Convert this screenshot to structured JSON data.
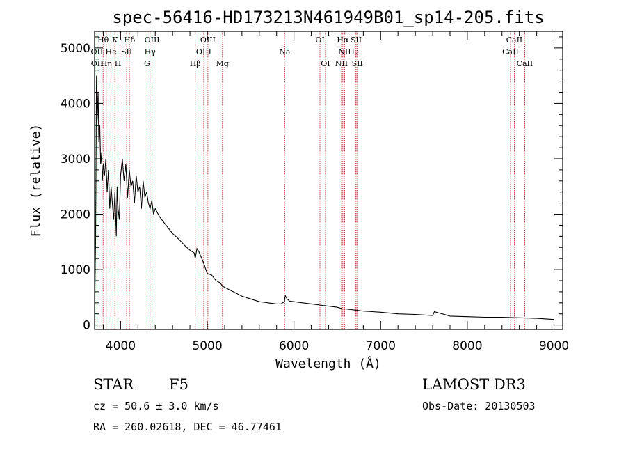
{
  "chart_data": {
    "type": "line",
    "title": "spec-56416-HD173213N461949B01_sp14-205.fits",
    "xlabel": "Wavelength (Å)",
    "ylabel": "Flux (relative)",
    "xlim": [
      3700,
      9100
    ],
    "ylim": [
      -80,
      5300
    ],
    "xticks": [
      4000,
      5000,
      6000,
      7000,
      8000,
      9000
    ],
    "yticks": [
      0,
      1000,
      2000,
      3000,
      4000,
      5000
    ],
    "series": [
      {
        "name": "spectrum",
        "x": [
          3700,
          3712,
          3722,
          3730,
          3740,
          3750,
          3760,
          3770,
          3780,
          3790,
          3800,
          3815,
          3830,
          3845,
          3860,
          3875,
          3890,
          3905,
          3920,
          3935,
          3950,
          3960,
          3970,
          3985,
          4000,
          4020,
          4040,
          4060,
          4080,
          4100,
          4120,
          4140,
          4160,
          4180,
          4200,
          4220,
          4240,
          4260,
          4280,
          4300,
          4320,
          4340,
          4360,
          4380,
          4400,
          4450,
          4500,
          4550,
          4600,
          4650,
          4700,
          4750,
          4800,
          4850,
          4861,
          4880,
          4900,
          4950,
          5000,
          5050,
          5100,
          5150,
          5175,
          5200,
          5300,
          5400,
          5500,
          5600,
          5700,
          5800,
          5850,
          5890,
          5900,
          5920,
          5950,
          6000,
          6100,
          6200,
          6300,
          6400,
          6500,
          6563,
          6600,
          6700,
          6800,
          6900,
          7000,
          7200,
          7400,
          7600,
          7620,
          7800,
          8000,
          8200,
          8400,
          8600,
          8800,
          9000
        ],
        "y": [
          0,
          1600,
          4500,
          3700,
          4200,
          3300,
          3600,
          2900,
          3100,
          2600,
          2900,
          2700,
          3000,
          2400,
          2800,
          2100,
          2500,
          2200,
          1900,
          2400,
          1600,
          2500,
          2100,
          1900,
          2700,
          3000,
          2600,
          2900,
          2300,
          2800,
          2500,
          2600,
          2200,
          2700,
          2400,
          2500,
          2100,
          2600,
          2300,
          2400,
          2200,
          2100,
          2250,
          2000,
          2100,
          1950,
          1850,
          1750,
          1650,
          1580,
          1500,
          1420,
          1350,
          1300,
          1200,
          1380,
          1330,
          1150,
          930,
          900,
          800,
          760,
          700,
          680,
          600,
          520,
          470,
          420,
          400,
          380,
          380,
          420,
          530,
          470,
          430,
          420,
          400,
          380,
          360,
          340,
          320,
          290,
          290,
          270,
          250,
          240,
          230,
          200,
          190,
          170,
          240,
          160,
          150,
          140,
          140,
          130,
          120,
          100
        ]
      }
    ],
    "line_labels": [
      {
        "label": "Hθ",
        "x": 3798,
        "row": 0
      },
      {
        "label": "K",
        "x": 3934,
        "row": 0
      },
      {
        "label": "Hδ",
        "x": 4102,
        "row": 0
      },
      {
        "label": "OIII",
        "x": 4363,
        "row": 0
      },
      {
        "label": "OIII",
        "x": 5007,
        "row": 0
      },
      {
        "label": "OI",
        "x": 6300,
        "row": 0
      },
      {
        "label": "Hα",
        "x": 6563,
        "row": 0
      },
      {
        "label": "SII",
        "x": 6717,
        "row": 0
      },
      {
        "label": "CaII",
        "x": 8542,
        "row": 0
      },
      {
        "label": "OII",
        "x": 3727,
        "row": 1
      },
      {
        "label": "He",
        "x": 3889,
        "row": 1
      },
      {
        "label": "SII",
        "x": 4070,
        "row": 1
      },
      {
        "label": "Hγ",
        "x": 4340,
        "row": 1
      },
      {
        "label": "OIII",
        "x": 4959,
        "row": 1
      },
      {
        "label": "Na",
        "x": 5893,
        "row": 1
      },
      {
        "label": "NII",
        "x": 6584,
        "row": 1
      },
      {
        "label": "Li",
        "x": 6708,
        "row": 1
      },
      {
        "label": "CaII",
        "x": 8498,
        "row": 1
      },
      {
        "label": "OII",
        "x": 3729,
        "row": 2
      },
      {
        "label": "Hη",
        "x": 3835,
        "row": 2
      },
      {
        "label": "H",
        "x": 3969,
        "row": 2
      },
      {
        "label": "G",
        "x": 4305,
        "row": 2
      },
      {
        "label": "Hβ",
        "x": 4861,
        "row": 2
      },
      {
        "label": "Mg",
        "x": 5175,
        "row": 2
      },
      {
        "label": "OI",
        "x": 6363,
        "row": 2
      },
      {
        "label": "NII",
        "x": 6548,
        "row": 2
      },
      {
        "label": "SII",
        "x": 6731,
        "row": 2
      },
      {
        "label": "CaII",
        "x": 8662,
        "row": 2
      }
    ]
  },
  "info": {
    "object_class": "STAR",
    "subclass": "F5",
    "survey": "LAMOST DR3",
    "redshift_text": "cz = 50.6 ± 3.0 km/s",
    "obs_date_text": "Obs-Date: 20130503",
    "coords_text": "RA = 260.02618, DEC =  46.77461"
  },
  "colors": {
    "line_marker": "#b22222",
    "spectrum": "#000000",
    "axes": "#000000"
  }
}
